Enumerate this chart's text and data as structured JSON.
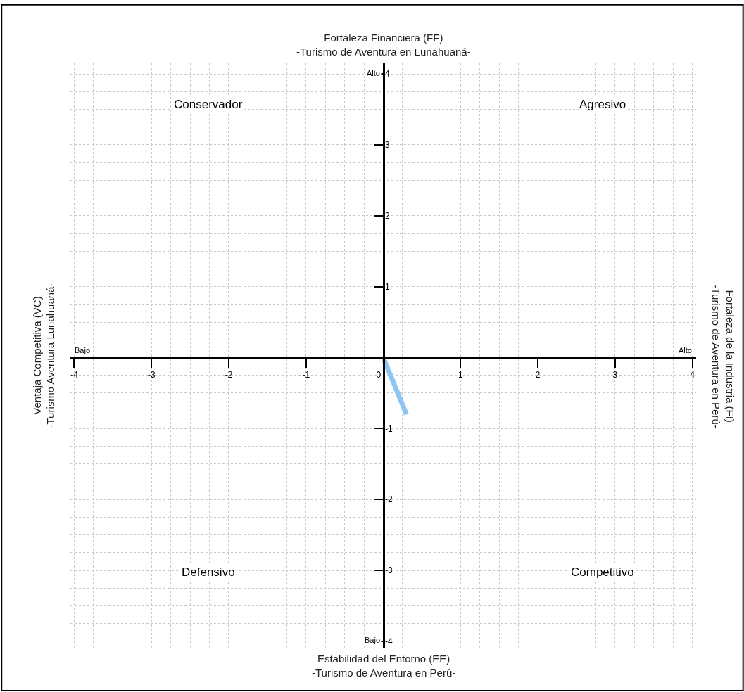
{
  "chart_data": {
    "type": "line",
    "title": "Fortaleza Financiera (FF)\n-Turismo de Aventura en Lunahuaná-",
    "xlabel": "Estabilidad del Entorno (EE)\n-Turismo de Aventura en Perú-",
    "ylabel": "Ventaja Competitiva (VC)\n-Turismo Aventura Lunahuaná-",
    "y2label": "Fortaleza de la Industria (FI)\n-Turismo de Aventura en Perú-",
    "x": [
      0,
      0.3
    ],
    "series": [
      {
        "color": "#8ec5f2",
        "values": [
          0,
          -0.8
        ]
      }
    ],
    "xlim": [
      -4.05,
      4.05
    ],
    "ylim": [
      -4.1,
      4.15
    ],
    "xticks": [
      -4,
      -3,
      -2,
      -1,
      0,
      1,
      2,
      3,
      4
    ],
    "yticks": [
      -4,
      -3,
      -2,
      -1,
      1,
      2,
      3,
      4
    ],
    "grid": true,
    "marker": "none",
    "line_style": "solid",
    "annotations": [
      "Conservador",
      "Agresivo",
      "Defensivo",
      "Competitivo",
      "Alto",
      "Bajo",
      "Bajo",
      "Alto"
    ]
  }
}
